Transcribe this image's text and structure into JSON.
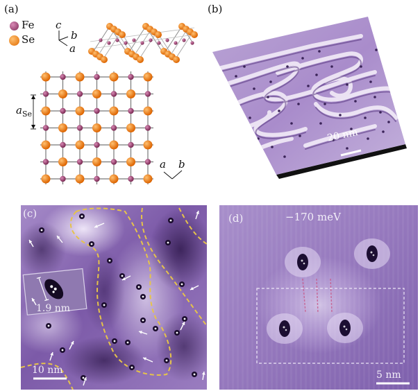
{
  "figure": {
    "panels": {
      "a": {
        "label": "(a)",
        "legend": [
          {
            "element": "Fe",
            "color": "#9a3a6a"
          },
          {
            "element": "Se",
            "color": "#f07d12"
          }
        ],
        "axes_top": {
          "c": "c",
          "b": "b",
          "a": "a"
        },
        "lattice_constant": {
          "symbol": "a",
          "subscript": "Se"
        },
        "axes_bottom": {
          "a": "a",
          "b": "b"
        }
      },
      "b": {
        "label": "(b)",
        "scalebar": "20 nm"
      },
      "c": {
        "label": "(c)",
        "inset_scalebar": "1.9 nm",
        "scalebar": "10 nm"
      },
      "d": {
        "label": "(d)",
        "energy": "−170 meV",
        "scalebar": "5 nm"
      }
    },
    "colors": {
      "stm_light": "#c7b3dd",
      "stm_mid": "#8f6fb8",
      "stm_dark": "#3d2460",
      "boundary": "#e6c34a"
    }
  }
}
